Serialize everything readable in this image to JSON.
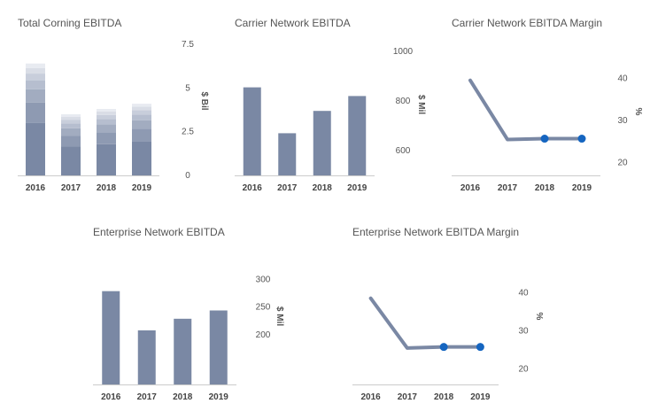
{
  "colors": {
    "bar": "#7a88a4",
    "line": "#7a88a4",
    "dot": "#1565c0",
    "axis": "#cccccc"
  },
  "chart_data": [
    {
      "id": "total",
      "type": "bar",
      "title": "Total Corning EBITDA",
      "categories": [
        "2016",
        "2017",
        "2018",
        "2019"
      ],
      "stacked": true,
      "segment_share": [
        0.47,
        0.18,
        0.12,
        0.08,
        0.06,
        0.05,
        0.04
      ],
      "values": [
        6.4,
        3.5,
        3.8,
        4.1
      ],
      "ylabel": "$ Bil",
      "ylim": [
        0,
        7.5
      ],
      "yticks": [
        "0",
        "2.5",
        "5",
        "7.5"
      ],
      "ytick_values": [
        0,
        2.5,
        5,
        7.5
      ]
    },
    {
      "id": "carrier",
      "type": "bar",
      "title": "Carrier Network EBITDA",
      "categories": [
        "2016",
        "2017",
        "2018",
        "2019"
      ],
      "values": [
        855,
        670,
        760,
        820
      ],
      "ylabel": "$ Mil",
      "ylim": [
        500,
        1000
      ],
      "yticks": [
        "600",
        "800",
        "1000"
      ],
      "ytick_values": [
        600,
        800,
        1000
      ]
    },
    {
      "id": "carrier_margin",
      "type": "line",
      "title": "Carrier Network EBITDA Margin",
      "categories": [
        "2016",
        "2017",
        "2018",
        "2019"
      ],
      "values": [
        39.5,
        25.5,
        25.7,
        25.7
      ],
      "highlight_from": 2,
      "ylabel": "%",
      "ylim": [
        17,
        43
      ],
      "yticks": [
        "20",
        "30",
        "40"
      ],
      "ytick_values": [
        20,
        30,
        40
      ]
    },
    {
      "id": "enterprise",
      "type": "bar",
      "title": "Enterprise Network EBITDA",
      "categories": [
        "2016",
        "2017",
        "2018",
        "2019"
      ],
      "values": [
        279,
        208,
        229,
        244
      ],
      "ylabel": "$ Mil",
      "ylim": [
        110,
        325
      ],
      "yticks": [
        "200",
        "250",
        "300"
      ],
      "ytick_values": [
        200,
        250,
        300
      ]
    },
    {
      "id": "enterprise_margin",
      "type": "line",
      "title": "Enterprise Network EBITDA Margin",
      "categories": [
        "2016",
        "2017",
        "2018",
        "2019"
      ],
      "values": [
        38.5,
        25.5,
        25.8,
        25.8
      ],
      "highlight_from": 2,
      "ylabel": "%",
      "ylim": [
        16,
        47
      ],
      "yticks": [
        "20",
        "30",
        "40"
      ],
      "ytick_values": [
        20,
        30,
        40
      ]
    }
  ]
}
